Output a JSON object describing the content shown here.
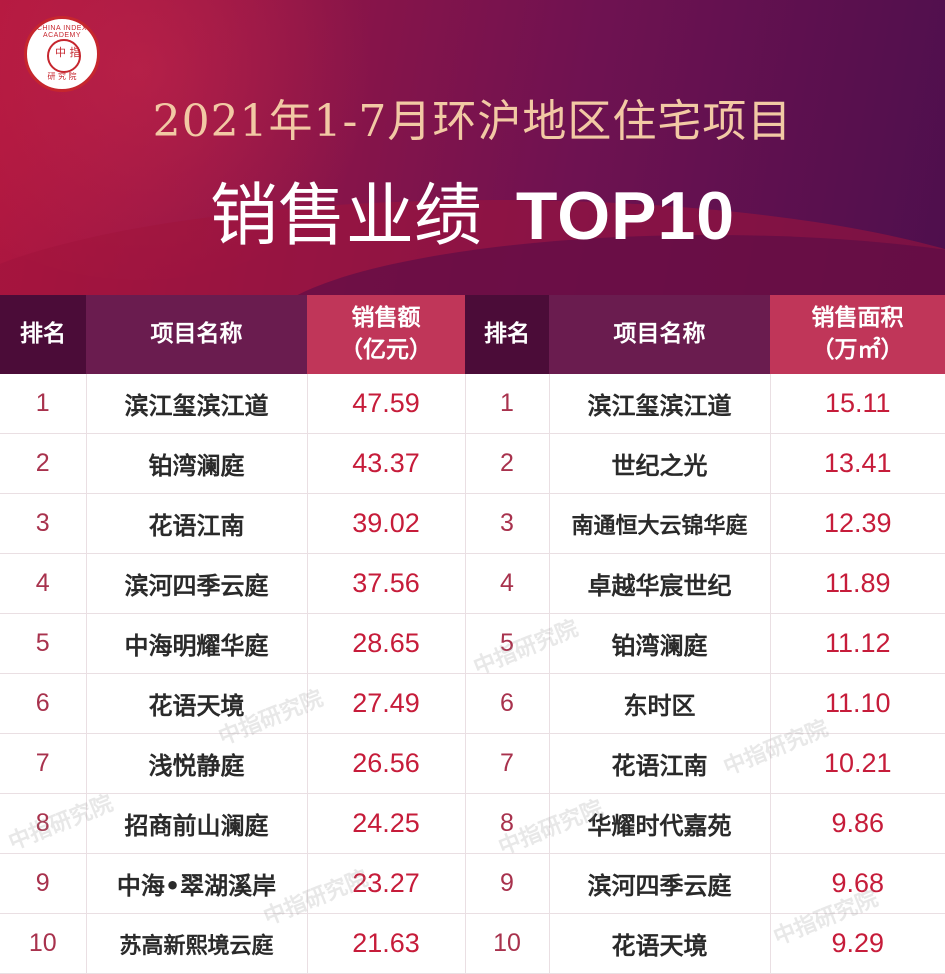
{
  "header": {
    "logo_ring_text": "CHINA INDEX ACADEMY",
    "logo_center": "中 指",
    "logo_bottom": "研 究 院",
    "title_line1": "2021年1-7月环沪地区住宅项目",
    "title_line2_cn": "销售业绩",
    "title_line2_latin": "TOP10"
  },
  "table": {
    "left_headers": {
      "rank": "排名",
      "name": "项目名称",
      "value_line1": "销售额",
      "value_line2": "（亿元）"
    },
    "right_headers": {
      "rank": "排名",
      "name": "项目名称",
      "value_line1": "销售面积",
      "value_line2": "（万㎡）"
    },
    "rows": [
      {
        "l_rank": "1",
        "l_name": "滨江玺滨江道",
        "l_value": "47.59",
        "r_rank": "1",
        "r_name": "滨江玺滨江道",
        "r_value": "15.11"
      },
      {
        "l_rank": "2",
        "l_name": "铂湾澜庭",
        "l_value": "43.37",
        "r_rank": "2",
        "r_name": "世纪之光",
        "r_value": "13.41"
      },
      {
        "l_rank": "3",
        "l_name": "花语江南",
        "l_value": "39.02",
        "r_rank": "3",
        "r_name": "南通恒大云锦华庭",
        "r_value": "12.39"
      },
      {
        "l_rank": "4",
        "l_name": "滨河四季云庭",
        "l_value": "37.56",
        "r_rank": "4",
        "r_name": "卓越华宸世纪",
        "r_value": "11.89"
      },
      {
        "l_rank": "5",
        "l_name": "中海明耀华庭",
        "l_value": "28.65",
        "r_rank": "5",
        "r_name": "铂湾澜庭",
        "r_value": "11.12"
      },
      {
        "l_rank": "6",
        "l_name": "花语天境",
        "l_value": "27.49",
        "r_rank": "6",
        "r_name": "东时区",
        "r_value": "11.10"
      },
      {
        "l_rank": "7",
        "l_name": "浅悦静庭",
        "l_value": "26.56",
        "r_rank": "7",
        "r_name": "花语江南",
        "r_value": "10.21"
      },
      {
        "l_rank": "8",
        "l_name": "招商前山澜庭",
        "l_value": "24.25",
        "r_rank": "8",
        "r_name": "华耀时代嘉苑",
        "r_value": "9.86"
      },
      {
        "l_rank": "9",
        "l_name": "中海•翠湖溪岸",
        "l_value": "23.27",
        "r_rank": "9",
        "r_name": "滨河四季云庭",
        "r_value": "9.68"
      },
      {
        "l_rank": "10",
        "l_name": "苏高新熙境云庭",
        "l_value": "21.63",
        "r_rank": "10",
        "r_name": "花语天境",
        "r_value": "9.29"
      }
    ]
  },
  "watermark": "中指研究院",
  "colors": {
    "banner_start": "#b2173f",
    "banner_end": "#4e0f4d",
    "header_rank": "#4b0c38",
    "header_name": "#6a1c4f",
    "header_value": "#c03659",
    "value_text": "#c61c3a",
    "rank_text": "#a8324d"
  }
}
